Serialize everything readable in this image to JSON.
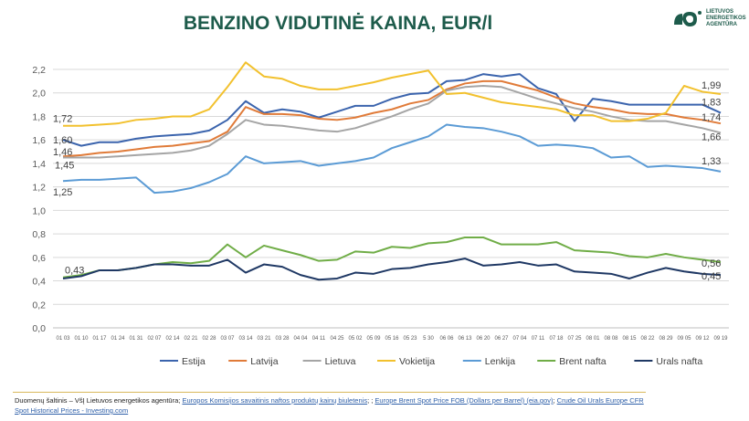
{
  "title": "BENZINO VIDUTINĖ KAINA, EUR/l",
  "logo": {
    "text": "LIETUVOS ENERGETIKOS AGENTŪRA"
  },
  "footer": {
    "prefix": "Duomenų šaltinis – VšĮ Lietuvos energetikos agentūra; ",
    "link1": "Europos Komisijos savaitinis naftos produktų kainų biuletenis",
    "sep1": "; ; ",
    "link2": "Europe Brent Spot Price FOB (Dollars per Barrel) (eia.gov)",
    "sep2": "; ",
    "link3": "Crude Oil Urals Europe CFR Spot Historical Prices - Investing.com"
  },
  "chart_data": {
    "type": "line",
    "title": "BENZINO VIDUTINĖ KAINA, EUR/l",
    "ylim": [
      0,
      2.2
    ],
    "yticks": [
      "0,0",
      "0,2",
      "0,4",
      "0,6",
      "0,8",
      "1,0",
      "1,2",
      "1,4",
      "1,6",
      "1,8",
      "2,0",
      "2,2"
    ],
    "grid": true,
    "legend": "bottom",
    "categories": [
      "01 03",
      "01 10",
      "01 17",
      "01 24",
      "01 31",
      "02 07",
      "02 14",
      "02 21",
      "02 28",
      "03 07",
      "03 14",
      "03 21",
      "03 28",
      "04 04",
      "04 11",
      "04 25",
      "05 02",
      "05 09",
      "05 16",
      "05 23",
      "5 30",
      "06 06",
      "06 13",
      "06 20",
      "06 27",
      "07 04",
      "07 11",
      "07 18",
      "07 25",
      "08 01",
      "08 08",
      "08 15",
      "08 22",
      "08 29",
      "09 05",
      "09 12",
      "09 19"
    ],
    "series": [
      {
        "name": "Estija",
        "color": "#3b64ad",
        "start_label": "1,60",
        "end_label": "1,83",
        "values": [
          1.6,
          1.55,
          1.58,
          1.58,
          1.61,
          1.63,
          1.64,
          1.65,
          1.68,
          1.77,
          1.93,
          1.83,
          1.86,
          1.84,
          1.79,
          1.84,
          1.89,
          1.89,
          1.95,
          1.99,
          2.0,
          2.1,
          2.11,
          2.16,
          2.14,
          2.16,
          2.04,
          1.99,
          1.76,
          1.95,
          1.93,
          1.9,
          1.9,
          1.9,
          1.9,
          1.9,
          1.83
        ]
      },
      {
        "name": "Latvija",
        "color": "#e07b39",
        "start_label": "1,46",
        "end_label": "1,74",
        "values": [
          1.46,
          1.47,
          1.49,
          1.5,
          1.52,
          1.54,
          1.55,
          1.57,
          1.59,
          1.67,
          1.88,
          1.82,
          1.82,
          1.81,
          1.78,
          1.77,
          1.79,
          1.83,
          1.86,
          1.91,
          1.94,
          2.03,
          2.08,
          2.1,
          2.1,
          2.06,
          2.02,
          1.96,
          1.91,
          1.88,
          1.86,
          1.83,
          1.82,
          1.82,
          1.79,
          1.77,
          1.74
        ]
      },
      {
        "name": "Lietuva",
        "color": "#a5a5a5",
        "start_label": "1,45",
        "end_label": "1,66",
        "values": [
          1.45,
          1.45,
          1.45,
          1.46,
          1.47,
          1.48,
          1.49,
          1.51,
          1.55,
          1.65,
          1.77,
          1.73,
          1.72,
          1.7,
          1.68,
          1.67,
          1.7,
          1.75,
          1.8,
          1.86,
          1.91,
          2.02,
          2.05,
          2.06,
          2.05,
          2.0,
          1.95,
          1.91,
          1.87,
          1.84,
          1.8,
          1.77,
          1.76,
          1.76,
          1.73,
          1.7,
          1.66
        ]
      },
      {
        "name": "Vokietija",
        "color": "#f2c12e",
        "start_label": "1,72",
        "end_label": "1,99",
        "values": [
          1.72,
          1.72,
          1.73,
          1.74,
          1.77,
          1.78,
          1.8,
          1.8,
          1.86,
          2.05,
          2.26,
          2.14,
          2.12,
          2.06,
          2.03,
          2.03,
          2.06,
          2.09,
          2.13,
          2.16,
          2.19,
          1.99,
          2.0,
          1.96,
          1.92,
          1.9,
          1.88,
          1.86,
          1.81,
          1.81,
          1.76,
          1.76,
          1.78,
          1.83,
          2.06,
          2.01,
          1.99
        ]
      },
      {
        "name": "Lenkija",
        "color": "#5b9bd5",
        "start_label": "1,25",
        "end_label": "1,33",
        "values": [
          1.25,
          1.26,
          1.26,
          1.27,
          1.28,
          1.15,
          1.16,
          1.19,
          1.24,
          1.31,
          1.46,
          1.4,
          1.41,
          1.42,
          1.38,
          1.4,
          1.42,
          1.45,
          1.53,
          1.58,
          1.63,
          1.73,
          1.71,
          1.7,
          1.67,
          1.63,
          1.55,
          1.56,
          1.55,
          1.53,
          1.45,
          1.46,
          1.37,
          1.38,
          1.37,
          1.36,
          1.33
        ]
      },
      {
        "name": "Brent nafta",
        "color": "#70ad47",
        "start_label": "0,43",
        "end_label": "0,56",
        "values": [
          0.43,
          0.45,
          0.49,
          0.49,
          0.51,
          0.54,
          0.56,
          0.55,
          0.57,
          0.71,
          0.6,
          0.7,
          0.66,
          0.62,
          0.57,
          0.58,
          0.65,
          0.64,
          0.69,
          0.68,
          0.72,
          0.73,
          0.77,
          0.77,
          0.71,
          0.71,
          0.71,
          0.73,
          0.66,
          0.65,
          0.64,
          0.61,
          0.6,
          0.63,
          0.6,
          0.58,
          0.56
        ]
      },
      {
        "name": "Urals nafta",
        "color": "#1f3864",
        "start_label": "",
        "end_label": "0,45",
        "values": [
          0.42,
          0.44,
          0.49,
          0.49,
          0.51,
          0.54,
          0.54,
          0.53,
          0.53,
          0.58,
          0.47,
          0.54,
          0.52,
          0.45,
          0.41,
          0.42,
          0.47,
          0.46,
          0.5,
          0.51,
          0.54,
          0.56,
          0.59,
          0.53,
          0.54,
          0.56,
          0.53,
          0.54,
          0.48,
          0.47,
          0.46,
          0.42,
          0.47,
          0.51,
          0.48,
          0.46,
          0.45
        ]
      }
    ]
  }
}
